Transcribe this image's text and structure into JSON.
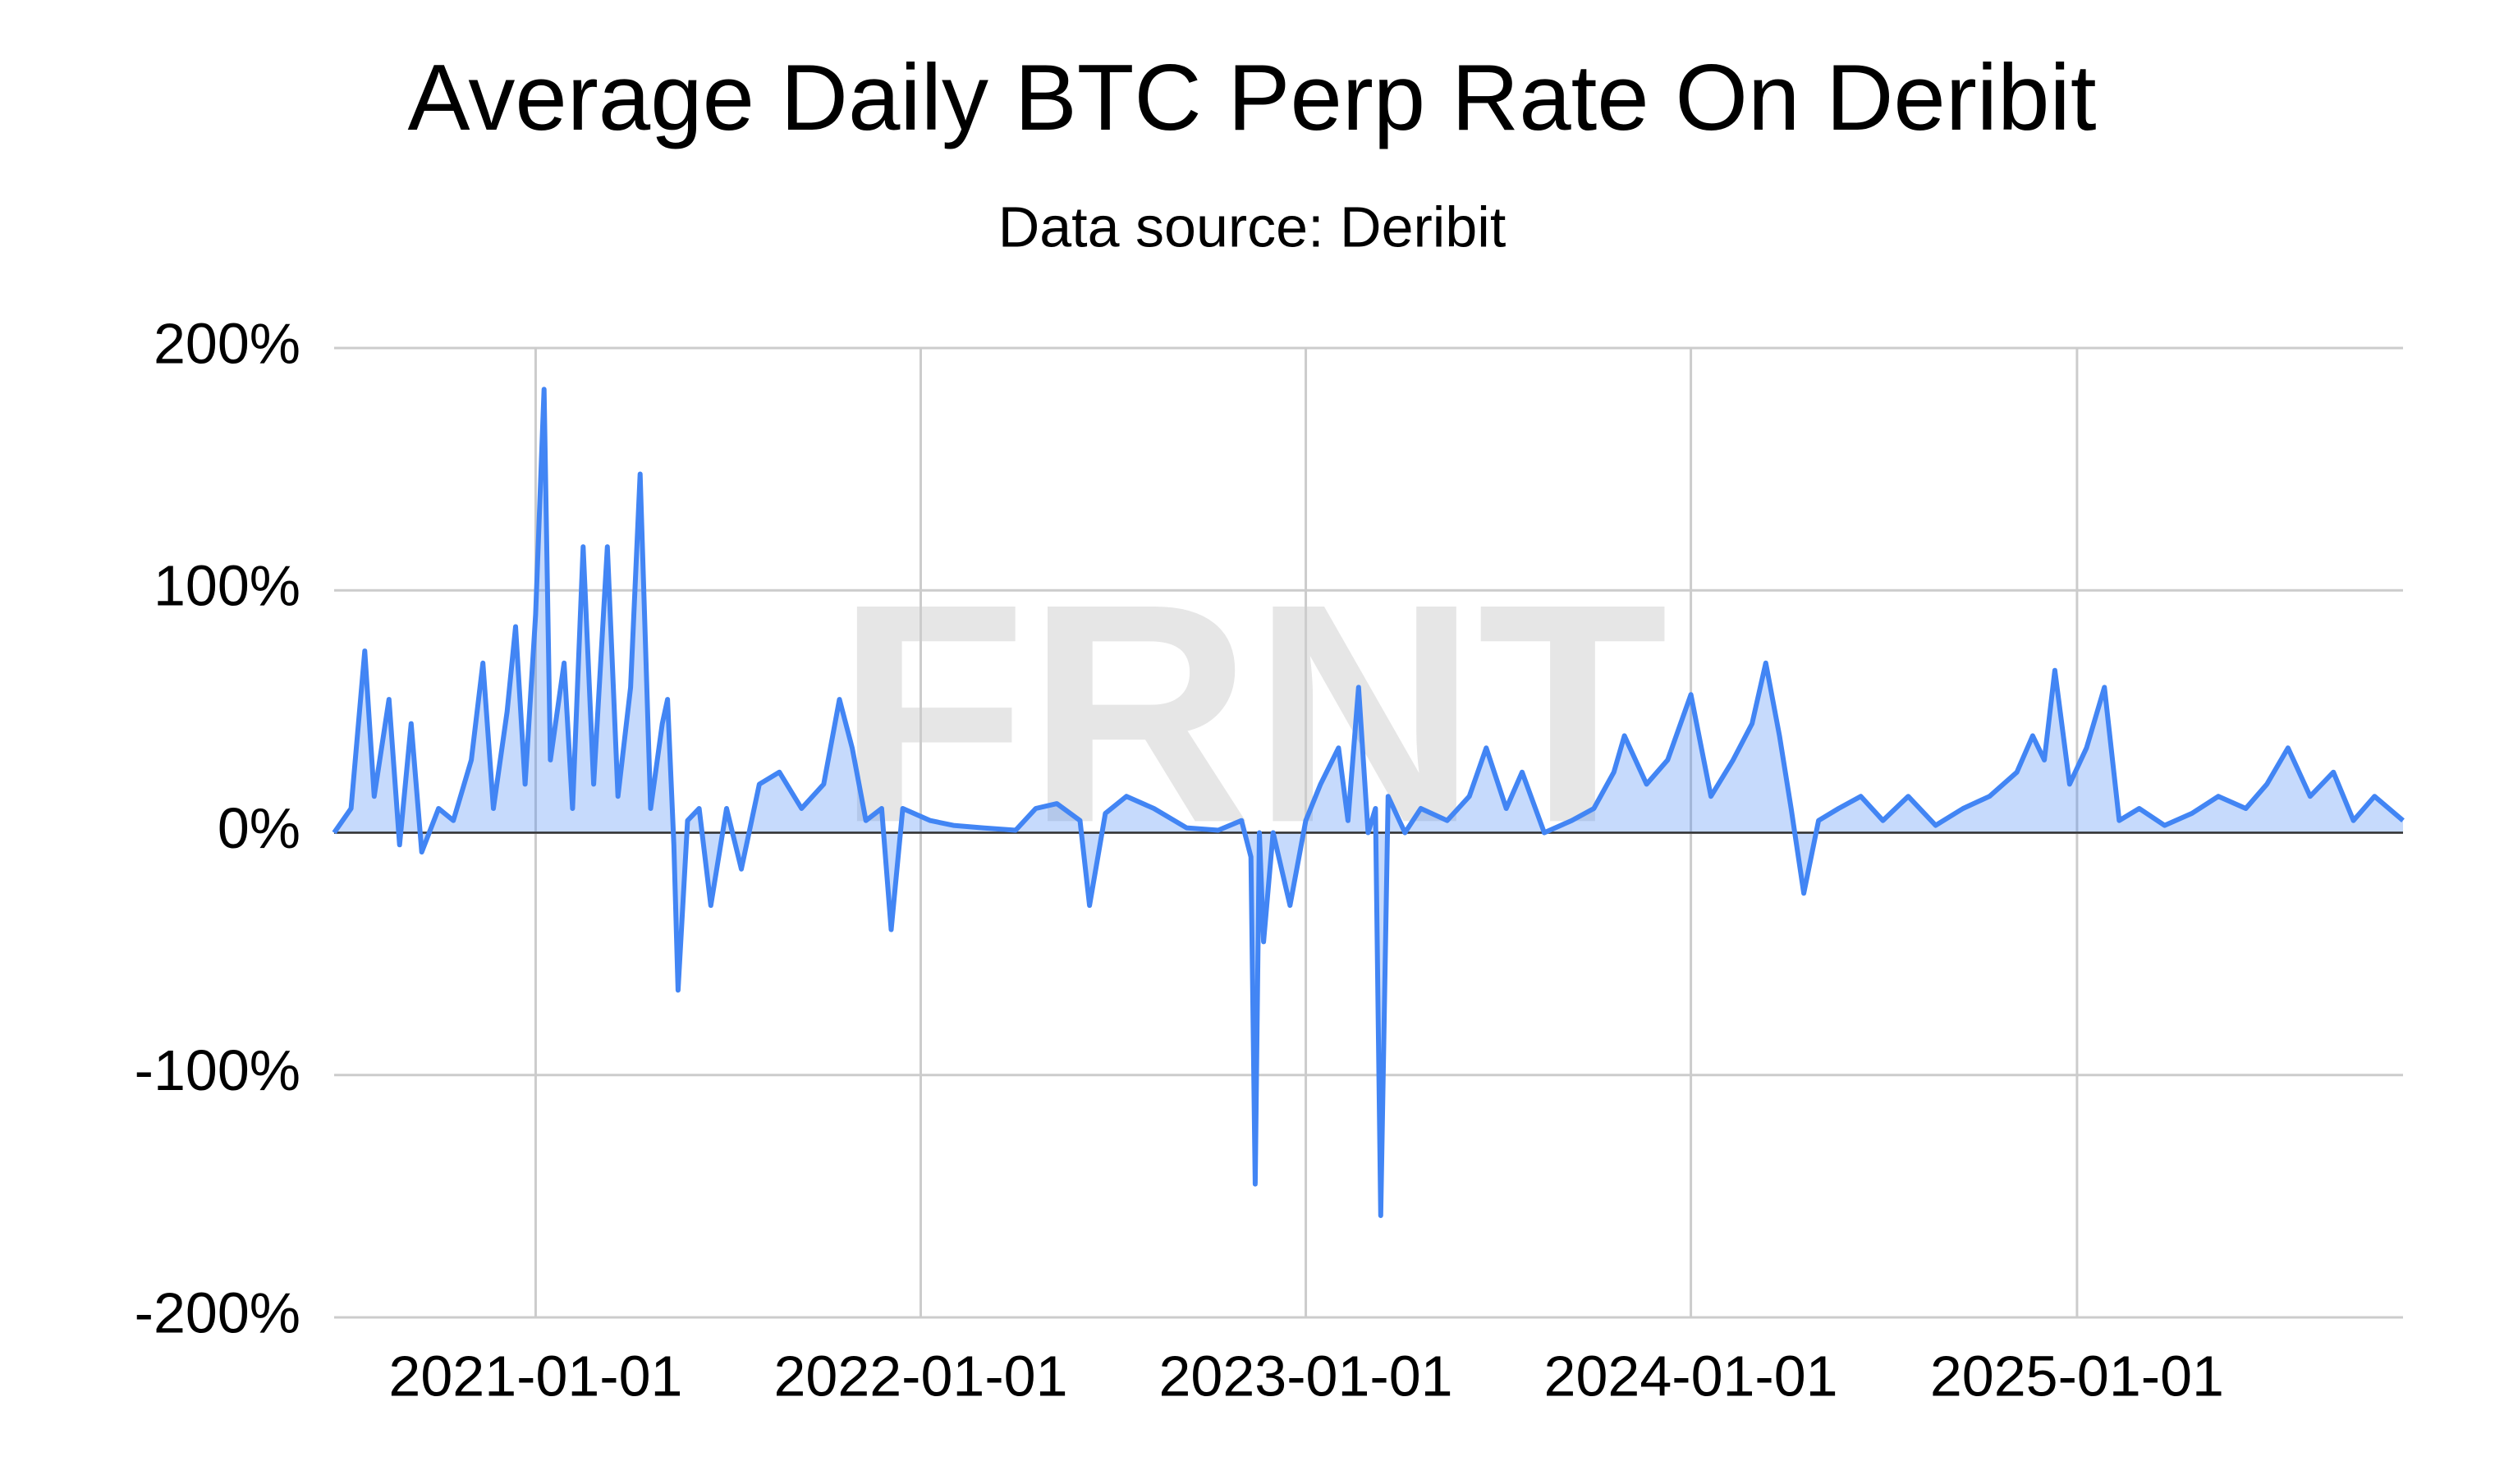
{
  "chart_data": {
    "type": "area",
    "title": "Average Daily BTC Perp Rate On Deribit",
    "subtitle": "Data source: Deribit",
    "watermark": "FRNT",
    "color": "#4285f4",
    "grid": true,
    "xlim": [
      "2020-06-24",
      "2025-11-06"
    ],
    "xticks": [
      "2021-01-01",
      "2022-01-01",
      "2023-01-01",
      "2024-01-01",
      "2025-01-01"
    ],
    "ylim": [
      -200,
      200
    ],
    "yticks": [
      {
        "value": -200,
        "label": "-200%"
      },
      {
        "value": -100,
        "label": "-100%"
      },
      {
        "value": 0,
        "label": "0%"
      },
      {
        "value": 100,
        "label": "100%"
      },
      {
        "value": 200,
        "label": "200%"
      }
    ],
    "x": [
      "2020-06-24",
      "2020-07-10",
      "2020-07-23",
      "2020-08-01",
      "2020-08-15",
      "2020-08-25",
      "2020-09-05",
      "2020-09-15",
      "2020-10-01",
      "2020-10-15",
      "2020-11-01",
      "2020-11-12",
      "2020-11-22",
      "2020-12-05",
      "2020-12-13",
      "2020-12-22",
      "2021-01-01",
      "2021-01-09",
      "2021-01-15",
      "2021-01-28",
      "2021-02-05",
      "2021-02-15",
      "2021-02-25",
      "2021-03-10",
      "2021-03-20",
      "2021-04-01",
      "2021-04-10",
      "2021-04-20",
      "2021-05-01",
      "2021-05-06",
      "2021-05-12",
      "2021-05-16",
      "2021-05-25",
      "2021-06-05",
      "2021-06-16",
      "2021-07-01",
      "2021-07-15",
      "2021-08-01",
      "2021-08-20",
      "2021-09-10",
      "2021-10-01",
      "2021-10-16",
      "2021-10-28",
      "2021-11-10",
      "2021-11-25",
      "2021-12-04",
      "2021-12-15",
      "2022-01-10",
      "2022-02-01",
      "2022-03-01",
      "2022-04-01",
      "2022-04-20",
      "2022-05-10",
      "2022-06-01",
      "2022-06-10",
      "2022-06-25",
      "2022-07-15",
      "2022-08-10",
      "2022-09-10",
      "2022-10-10",
      "2022-11-01",
      "2022-11-10",
      "2022-11-14",
      "2022-11-18",
      "2022-11-22",
      "2022-12-01",
      "2022-12-17",
      "2023-01-01",
      "2023-01-15",
      "2023-02-01",
      "2023-02-10",
      "2023-02-20",
      "2023-03-01",
      "2023-03-08",
      "2023-03-13",
      "2023-03-20",
      "2023-04-05",
      "2023-04-20",
      "2023-05-15",
      "2023-06-05",
      "2023-06-21",
      "2023-07-10",
      "2023-07-25",
      "2023-08-15",
      "2023-09-10",
      "2023-10-01",
      "2023-10-20",
      "2023-10-30",
      "2023-11-20",
      "2023-12-10",
      "2024-01-01",
      "2024-01-20",
      "2024-02-10",
      "2024-02-28",
      "2024-03-12",
      "2024-03-25",
      "2024-04-05",
      "2024-04-17",
      "2024-05-01",
      "2024-05-20",
      "2024-06-10",
      "2024-07-01",
      "2024-07-25",
      "2024-08-20",
      "2024-09-15",
      "2024-10-10",
      "2024-11-05",
      "2024-11-20",
      "2024-12-01",
      "2024-12-11",
      "2024-12-25",
      "2025-01-10",
      "2025-01-27",
      "2025-02-10",
      "2025-03-01",
      "2025-03-25",
      "2025-04-20",
      "2025-05-15",
      "2025-06-10",
      "2025-06-30",
      "2025-07-20",
      "2025-08-10",
      "2025-09-01",
      "2025-09-20",
      "2025-10-10",
      "2025-11-06"
    ],
    "series": [
      {
        "name": "Average Daily BTC Perp Rate",
        "color": "#4285f4",
        "values": [
          0,
          10,
          75,
          15,
          55,
          -5,
          45,
          -8,
          10,
          5,
          30,
          70,
          10,
          50,
          85,
          20,
          90,
          183,
          30,
          70,
          10,
          118,
          20,
          118,
          15,
          60,
          148,
          10,
          45,
          55,
          -5,
          -65,
          5,
          10,
          -30,
          10,
          -15,
          20,
          25,
          10,
          20,
          55,
          35,
          5,
          10,
          -40,
          10,
          5,
          3,
          2,
          1,
          10,
          12,
          5,
          -30,
          8,
          15,
          10,
          2,
          1,
          5,
          -10,
          -145,
          0,
          -45,
          0,
          -30,
          5,
          20,
          35,
          5,
          60,
          0,
          10,
          -158,
          15,
          0,
          10,
          5,
          15,
          35,
          10,
          25,
          0,
          5,
          10,
          25,
          40,
          20,
          30,
          57,
          15,
          30,
          45,
          70,
          40,
          10,
          -25,
          5,
          10,
          15,
          5,
          15,
          3,
          10,
          15,
          25,
          40,
          30,
          67,
          20,
          35,
          60,
          5,
          10,
          3,
          8,
          15,
          10,
          20,
          35,
          15,
          25,
          5,
          15,
          5
        ]
      }
    ]
  }
}
